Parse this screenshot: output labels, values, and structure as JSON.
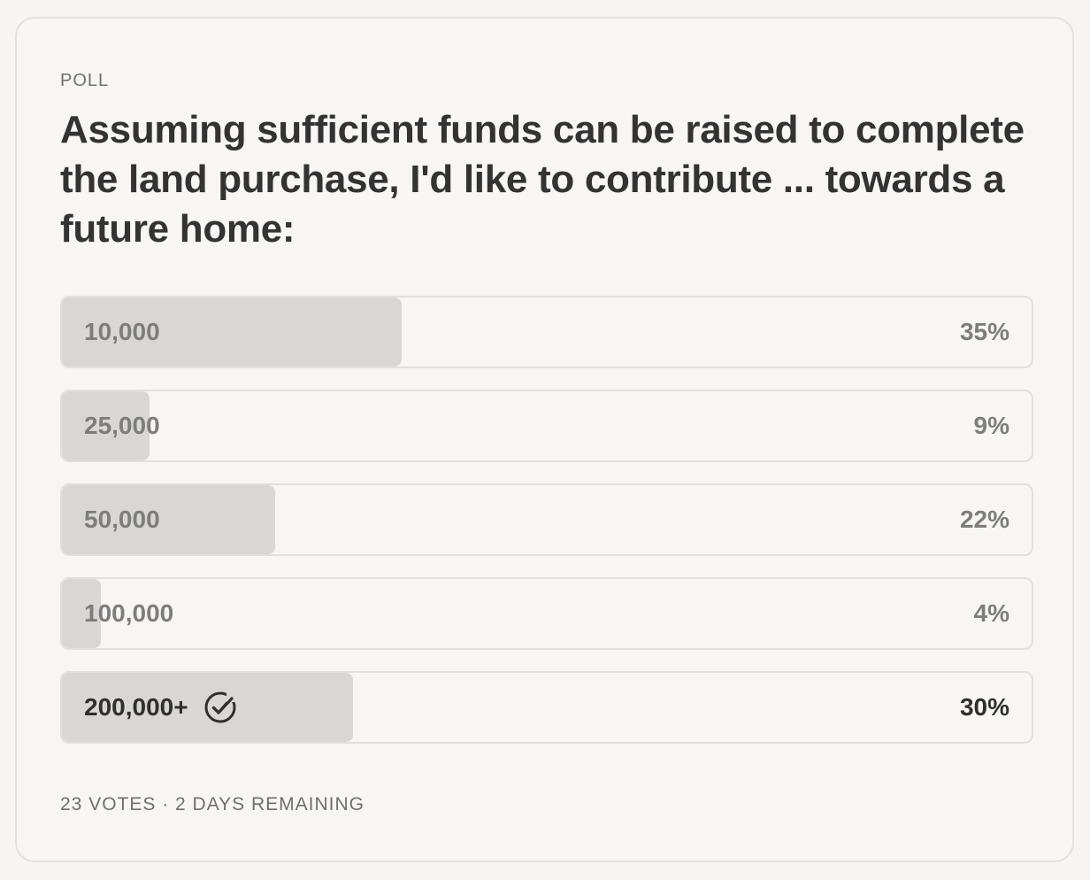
{
  "poll": {
    "kicker": "POLL",
    "question": "Assuming sufficient funds can be raised to complete the land purchase, I'd like to contribute ... towards a future home:",
    "options": [
      {
        "label": "10,000",
        "percent_label": "35%",
        "percent": 35,
        "selected": false
      },
      {
        "label": "25,000",
        "percent_label": "9%",
        "percent": 9,
        "selected": false
      },
      {
        "label": "50,000",
        "percent_label": "22%",
        "percent": 22,
        "selected": false
      },
      {
        "label": "100,000",
        "percent_label": "4%",
        "percent": 4,
        "selected": false
      },
      {
        "label": "200,000+",
        "percent_label": "30%",
        "percent": 30,
        "selected": true,
        "icon": "check-circle-icon"
      }
    ],
    "footer": "23 VOTES · 2 DAYS REMAINING"
  }
}
